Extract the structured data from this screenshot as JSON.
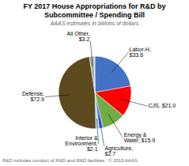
{
  "chart_data": {
    "type": "pie",
    "title": "FY 2017 House Appropriations for R&D by\nSubcommittee / Spending Bill",
    "subtitle": "AAAS estimates in billions of dollars",
    "footnote": "R&D includes conduct of R&D and R&D facilities.  © 2016 AAAS",
    "categories": [
      "Labor-H,\n$33.6",
      "CJS, $21.0",
      "Energy &\nWater, $15.9",
      "Agriculture,\n$2.7",
      "Interior &\nEnvironment,\n$2.1",
      "Defense,\n$72.9",
      "All Other,\n$3.2",
      null
    ],
    "values": [
      33.6,
      21.0,
      15.9,
      2.7,
      2.1,
      72.9,
      3.2,
      0.5
    ],
    "colors": [
      "#4472C4",
      "#FF0000",
      "#70AD47",
      "#4169E1",
      "#ADD8E6",
      "#5C4A1E",
      "#A9A9A9",
      "#7EC8C8"
    ]
  }
}
